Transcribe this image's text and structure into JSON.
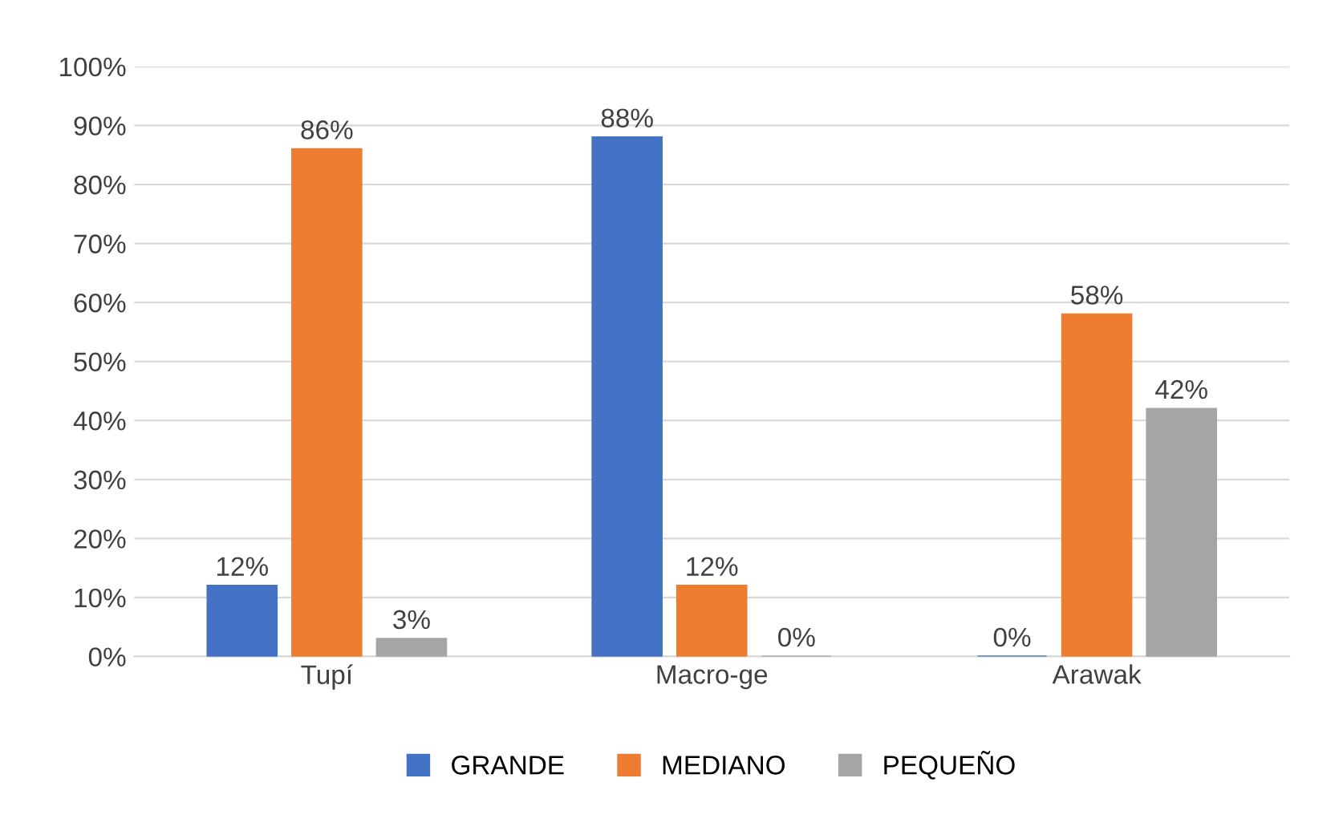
{
  "chart_data": {
    "type": "bar",
    "categories": [
      "Tupí",
      "Macro-ge",
      "Arawak"
    ],
    "series": [
      {
        "name": "GRANDE",
        "color": "#4472c4",
        "values": [
          12,
          88,
          0
        ],
        "value_labels": [
          "12%",
          "88%",
          "0%"
        ]
      },
      {
        "name": "MEDIANO",
        "color": "#ed7d31",
        "values": [
          86,
          12,
          58
        ],
        "value_labels": [
          "86%",
          "12%",
          "58%"
        ]
      },
      {
        "name": "PEQUEÑO",
        "color": "#a5a5a5",
        "values": [
          3,
          0,
          42
        ],
        "value_labels": [
          "3%",
          "0%",
          "42%"
        ]
      }
    ],
    "ylim": [
      0,
      100
    ],
    "yticks": [
      {
        "value": 0,
        "label": "0%"
      },
      {
        "value": 10,
        "label": "10%"
      },
      {
        "value": 20,
        "label": "20%"
      },
      {
        "value": 30,
        "label": "30%"
      },
      {
        "value": 40,
        "label": "40%"
      },
      {
        "value": 50,
        "label": "50%"
      },
      {
        "value": 60,
        "label": "60%"
      },
      {
        "value": 70,
        "label": "70%"
      },
      {
        "value": 80,
        "label": "80%"
      },
      {
        "value": 90,
        "label": "90%"
      },
      {
        "value": 100,
        "label": "100%"
      }
    ],
    "grid": "y",
    "legend": "bottom"
  }
}
